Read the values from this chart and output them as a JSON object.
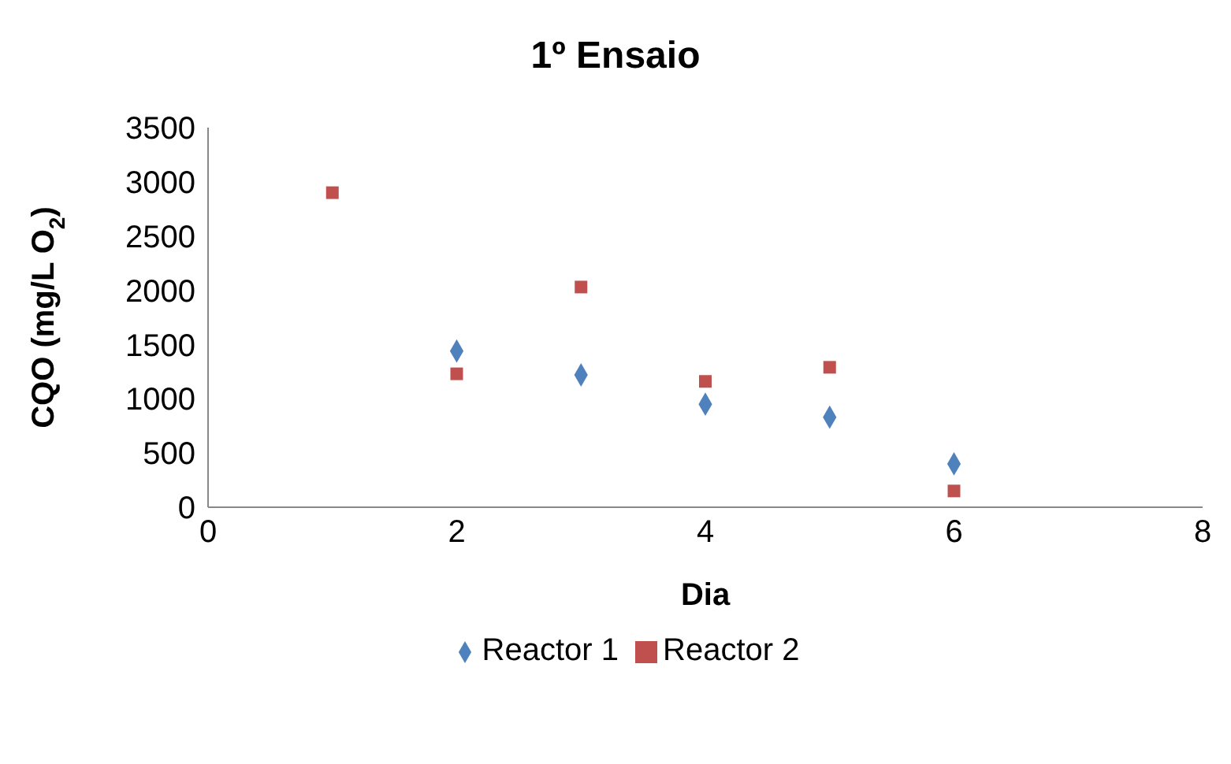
{
  "chart_data": {
    "type": "scatter",
    "title": "1º Ensaio",
    "xlabel": "Dia",
    "ylabel": "CQO (mg/L O$_{2}$)",
    "x": [
      1,
      2,
      3,
      4,
      5,
      6
    ],
    "series": [
      {
        "name": "Reactor 1",
        "color": "#4f81bd",
        "marker": "diamond",
        "values": [
          null,
          1440,
          1220,
          950,
          830,
          400
        ]
      },
      {
        "name": "Reactor 2",
        "color": "#c0504d",
        "marker": "square",
        "values": [
          2900,
          1230,
          2030,
          1160,
          1290,
          150
        ]
      }
    ],
    "xlim": [
      0,
      8
    ],
    "xticks": [
      0,
      2,
      4,
      6,
      8
    ],
    "ylim": [
      0,
      3500
    ],
    "yticks": [
      0,
      500,
      1000,
      1500,
      2000,
      2500,
      3000,
      3500
    ],
    "grid": false,
    "legend": "bottom"
  }
}
